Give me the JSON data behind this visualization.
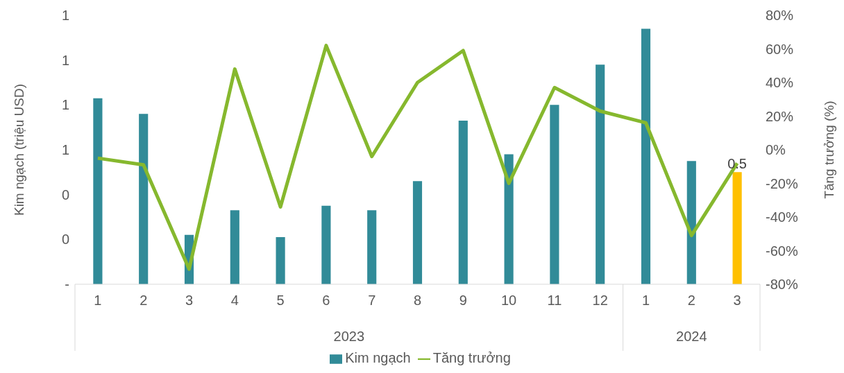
{
  "chart_data": {
    "type": "bar",
    "ylabel": "Kim ngạch (triệu USD)",
    "y2label": "Tăng trưởng (%)",
    "categories": [
      "1",
      "2",
      "3",
      "4",
      "5",
      "6",
      "7",
      "8",
      "9",
      "10",
      "11",
      "12",
      "1",
      "2",
      "3"
    ],
    "annotations": [
      "2023",
      "2024"
    ],
    "series": [
      {
        "name": "Kim ngạch",
        "color": "#318b98",
        "colors": [
          "#318b98",
          "#318b98",
          "#318b98",
          "#318b98",
          "#318b98",
          "#318b98",
          "#318b98",
          "#318b98",
          "#318b98",
          "#318b98",
          "#318b98",
          "#318b98",
          "#318b98",
          "#318b98",
          "#ffc000"
        ],
        "values": [
          0.83,
          0.76,
          0.22,
          0.33,
          0.21,
          0.35,
          0.33,
          0.46,
          0.73,
          0.58,
          0.8,
          0.98,
          1.14,
          0.55,
          0.5
        ],
        "value_labels": [
          null,
          null,
          null,
          null,
          null,
          null,
          null,
          null,
          null,
          null,
          null,
          null,
          null,
          null,
          "0.5"
        ]
      },
      {
        "name": "Tăng trưởng",
        "type": "line",
        "axis": "y2",
        "color": "#86b82e",
        "values": [
          -5,
          -9,
          -71,
          48,
          -34,
          62,
          -4,
          40,
          59,
          -20,
          37,
          23,
          16,
          -51,
          -8
        ]
      }
    ],
    "ylim": [
      0,
      1.2
    ],
    "yticks": [
      {
        "value": 0,
        "label": "-"
      },
      {
        "value": 0.2,
        "label": "0"
      },
      {
        "value": 0.4,
        "label": "0"
      },
      {
        "value": 0.6,
        "label": "1"
      },
      {
        "value": 0.8,
        "label": "1"
      },
      {
        "value": 1,
        "label": "1"
      },
      {
        "value": 1.2,
        "label": "1"
      }
    ],
    "y2lim": [
      -80,
      80
    ],
    "y2ticks": [
      {
        "value": -80,
        "label": "-80%"
      },
      {
        "value": -60,
        "label": "-60%"
      },
      {
        "value": -40,
        "label": "-40%"
      },
      {
        "value": -20,
        "label": "-20%"
      },
      {
        "value": 0,
        "label": "0%"
      },
      {
        "value": 20,
        "label": "20%"
      },
      {
        "value": 40,
        "label": "40%"
      },
      {
        "value": 60,
        "label": "60%"
      },
      {
        "value": 80,
        "label": "80%"
      }
    ],
    "grid": false,
    "legend": "bottom",
    "marker": "none",
    "line_style": "solid"
  }
}
